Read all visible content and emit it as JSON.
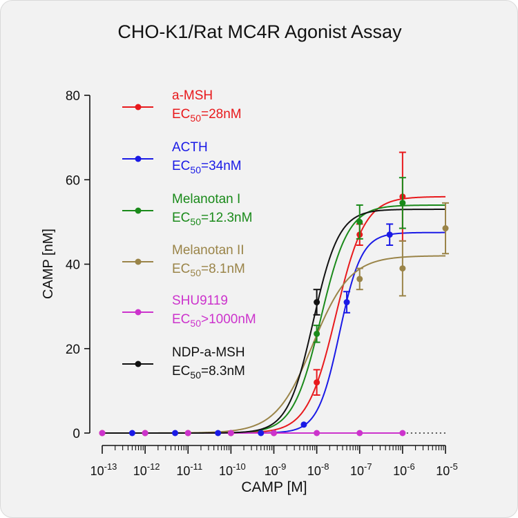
{
  "chart_data": {
    "type": "scatter",
    "title": "CHO-K1/Rat MC4R Agonist Assay",
    "xlabel": "CAMP [M]",
    "ylabel": "CAMP [nM]",
    "xscale": "log",
    "xlim": [
      1e-13,
      1e-05
    ],
    "ylim": [
      0,
      80
    ],
    "y_ticks": [
      "0",
      "20",
      "40",
      "60",
      "80"
    ],
    "x_ticks": [
      {
        "base": "10",
        "exp": "-13",
        "value": 1e-13
      },
      {
        "base": "10",
        "exp": "-12",
        "value": 1e-12
      },
      {
        "base": "10",
        "exp": "-11",
        "value": 1e-11
      },
      {
        "base": "10",
        "exp": "-10",
        "value": 1e-10
      },
      {
        "base": "10",
        "exp": "-9",
        "value": 1e-09
      },
      {
        "base": "10",
        "exp": "-8",
        "value": 1e-08
      },
      {
        "base": "10",
        "exp": "-7",
        "value": 1e-07
      },
      {
        "base": "10",
        "exp": "-6",
        "value": 1e-06
      },
      {
        "base": "10",
        "exp": "-5",
        "value": 1e-05
      }
    ],
    "grid": false,
    "legend_position": "top-left",
    "series": [
      {
        "name": "a-MSH",
        "ec_prefix": "EC",
        "ec_sub": "50",
        "ec_value": "=28nM",
        "color": "#e8191c",
        "curve": {
          "top": 56,
          "bottom": 0,
          "ec50": 2.8e-08,
          "hill": 1.3
        },
        "points": [
          {
            "x": 1e-13,
            "y": 0
          },
          {
            "x": 1e-12,
            "y": 0
          },
          {
            "x": 1e-11,
            "y": 0
          },
          {
            "x": 1e-10,
            "y": 0
          },
          {
            "x": 1e-09,
            "y": 0
          },
          {
            "x": 1e-08,
            "y": 12,
            "err": 3
          },
          {
            "x": 1e-07,
            "y": 47,
            "err": 2.5
          },
          {
            "x": 1e-06,
            "y": 56,
            "err": 10.5
          }
        ]
      },
      {
        "name": "ACTH",
        "ec_prefix": "EC",
        "ec_sub": "50",
        "ec_value": "=34nM",
        "color": "#1a1ae6",
        "curve": {
          "top": 47.5,
          "bottom": 0,
          "ec50": 3.4e-08,
          "hill": 1.7
        },
        "points": [
          {
            "x": 5e-13,
            "y": 0
          },
          {
            "x": 5e-12,
            "y": 0
          },
          {
            "x": 5e-11,
            "y": 0
          },
          {
            "x": 5e-10,
            "y": 0
          },
          {
            "x": 5e-09,
            "y": 2
          },
          {
            "x": 5e-08,
            "y": 31,
            "err": 2.5
          },
          {
            "x": 5e-07,
            "y": 47,
            "err": 2.5
          }
        ]
      },
      {
        "name": "Melanotan I",
        "ec_prefix": "EC",
        "ec_sub": "50",
        "ec_value": "=12.3nM",
        "color": "#1a8a1a",
        "curve": {
          "top": 54,
          "bottom": 0,
          "ec50": 1.23e-08,
          "hill": 1.35
        },
        "points": [
          {
            "x": 1e-08,
            "y": 23.5,
            "err": 2
          },
          {
            "x": 1e-07,
            "y": 50,
            "err": 4
          },
          {
            "x": 1e-06,
            "y": 54.5,
            "err": 6
          }
        ]
      },
      {
        "name": "Melanotan II",
        "ec_prefix": "EC",
        "ec_sub": "50",
        "ec_value": "=8.1nM",
        "color": "#9a8448",
        "curve": {
          "top": 42,
          "bottom": 0,
          "ec50": 8.1e-09,
          "hill": 1.0
        },
        "points": [
          {
            "x": 1e-07,
            "y": 36.5,
            "err": 2.5
          },
          {
            "x": 1e-06,
            "y": 39,
            "err": 6.5
          },
          {
            "x": 1e-05,
            "y": 48.5,
            "err": 6
          }
        ]
      },
      {
        "name": "SHU9119",
        "ec_prefix": "EC",
        "ec_sub": "50",
        "ec_value": ">1000nM",
        "color": "#cc33cc",
        "curve": {
          "flat": 0,
          "end": 1e-06,
          "dotted_to": 1e-05
        },
        "points": [
          {
            "x": 1e-13,
            "y": 0
          },
          {
            "x": 1e-12,
            "y": 0
          },
          {
            "x": 1e-11,
            "y": 0
          },
          {
            "x": 1e-10,
            "y": 0
          },
          {
            "x": 1e-09,
            "y": 0
          },
          {
            "x": 1e-08,
            "y": 0
          },
          {
            "x": 1e-07,
            "y": 0
          },
          {
            "x": 1e-06,
            "y": 0
          }
        ]
      },
      {
        "name": "NDP-a-MSH",
        "ec_prefix": "EC",
        "ec_sub": "50",
        "ec_value": "=8.3nM",
        "color": "#111111",
        "curve": {
          "top": 53,
          "bottom": 0,
          "ec50": 8.3e-09,
          "hill": 1.45
        },
        "points": [
          {
            "x": 1e-08,
            "y": 31,
            "err": 3
          }
        ]
      }
    ]
  }
}
